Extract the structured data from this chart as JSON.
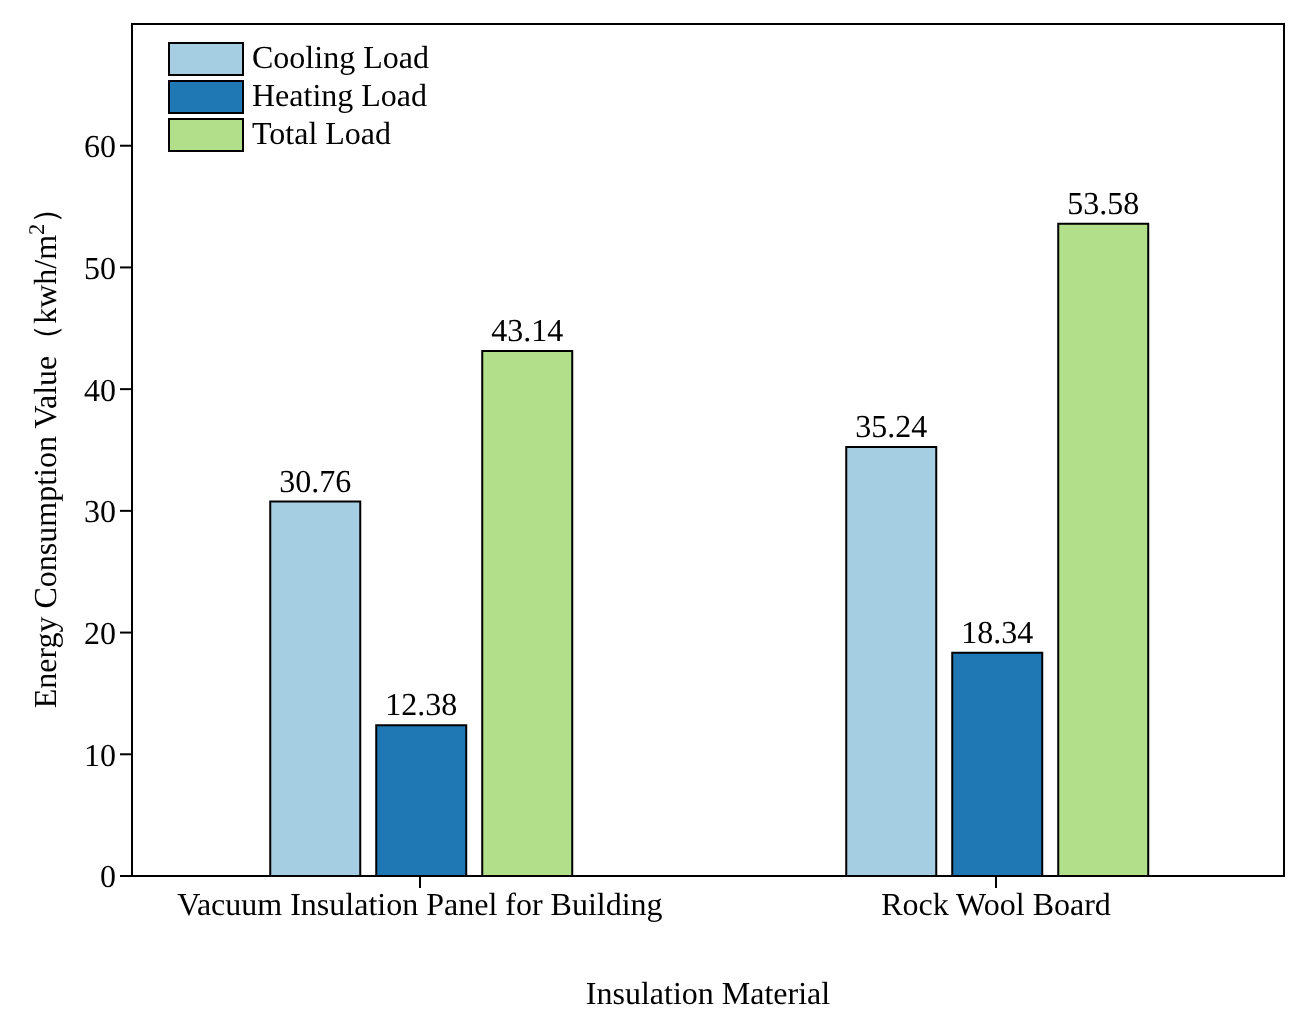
{
  "chart_data": {
    "type": "bar",
    "xlabel": "Insulation Material",
    "ylabel": "Energy Consumption Value（kwh/m$^{2}$）",
    "categories": [
      "Vacuum Insulation Panel for Building",
      "Rock Wool Board"
    ],
    "series": [
      {
        "name": "Cooling Load",
        "color": "#a6cee3",
        "values": [
          30.76,
          35.24
        ]
      },
      {
        "name": "Heating Load",
        "color": "#1f78b4",
        "values": [
          12.38,
          18.34
        ]
      },
      {
        "name": "Total Load",
        "color": "#b2df8a",
        "values": [
          43.14,
          53.58
        ]
      }
    ],
    "ylim": [
      0,
      70
    ],
    "yticks": [
      0,
      10,
      20,
      30,
      40,
      50,
      60
    ],
    "data_labels": true,
    "legend": "top left",
    "grid": false
  }
}
